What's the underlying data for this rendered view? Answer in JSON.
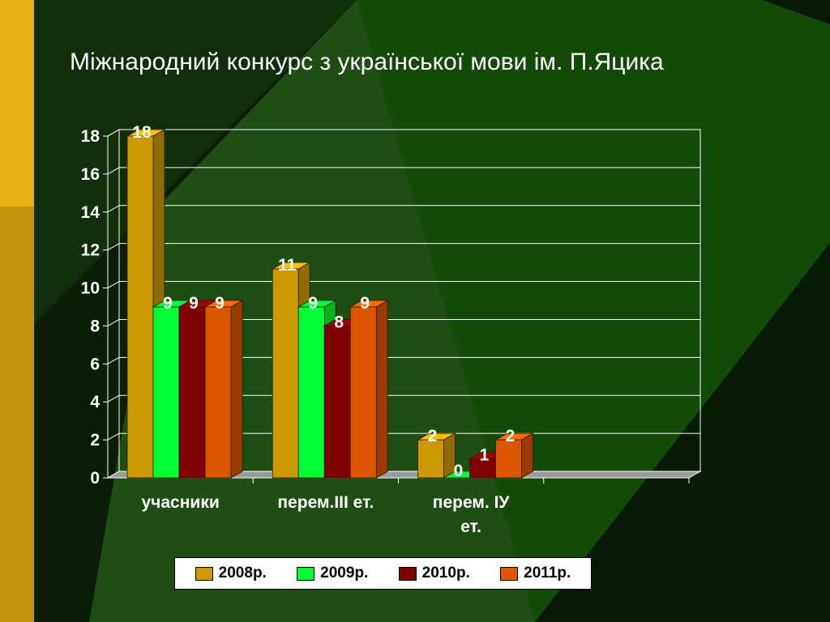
{
  "slide": {
    "title": "Міжнародний конкурс з української мови ім. П.Яцика"
  },
  "chart_data": {
    "type": "bar",
    "categories": [
      "учасники",
      "перем.III ет.",
      "перем. ІУ ет."
    ],
    "series": [
      {
        "name": "2008р.",
        "color": "#cc9900",
        "values": [
          18,
          11,
          2
        ]
      },
      {
        "name": "2009р.",
        "color": "#00ff33",
        "values": [
          9,
          9,
          0
        ]
      },
      {
        "name": "2010р.",
        "color": "#800000",
        "values": [
          9,
          8,
          1
        ]
      },
      {
        "name": "2011р.",
        "color": "#dd5500",
        "values": [
          9,
          9,
          2
        ]
      }
    ],
    "yticks": [
      "0",
      "2",
      "4",
      "6",
      "8",
      "10",
      "12",
      "14",
      "16",
      "18"
    ],
    "ylim": [
      0,
      18
    ],
    "grid": true,
    "legend_position": "bottom",
    "data_labels": true,
    "style": "3d-clustered-column"
  }
}
